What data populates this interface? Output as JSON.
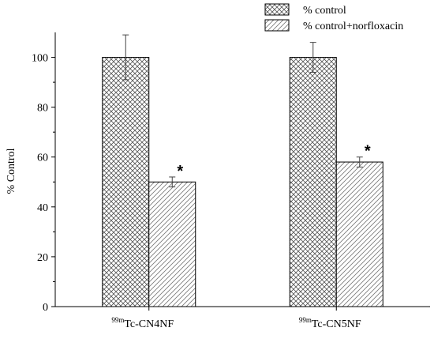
{
  "chart_data": {
    "type": "bar",
    "title": "",
    "xlabel": "",
    "ylabel": "% Control",
    "ylim": [
      0,
      110
    ],
    "yticks": [
      0,
      20,
      40,
      60,
      80,
      100
    ],
    "grid": false,
    "legend_position": "top-right",
    "categories": [
      {
        "sup": "99m",
        "base": "Tc-CN4NF"
      },
      {
        "sup": "99m",
        "base": "Tc-CN5NF"
      }
    ],
    "series": [
      {
        "name": "% control",
        "pattern": "crosshatch",
        "values": [
          100,
          100
        ],
        "errors": [
          9,
          6
        ]
      },
      {
        "name": "% control+norfloxacin",
        "pattern": "diagonal",
        "values": [
          50,
          58
        ],
        "errors": [
          2,
          2
        ]
      }
    ],
    "annotations": [
      {
        "category": 0,
        "series": 1,
        "text": "*"
      },
      {
        "category": 1,
        "series": 1,
        "text": "*"
      }
    ]
  }
}
